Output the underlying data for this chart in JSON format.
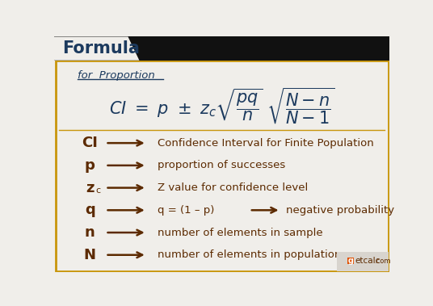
{
  "bg_color": "#f0eeea",
  "header_bg": "#111111",
  "header_text": "Formula",
  "title_color": "#1c3a5e",
  "border_color": "#c8960c",
  "formula_color": "#1c3a5e",
  "desc_color": "#5c2a00",
  "for_proportion_text": "for  Proportion",
  "arrow_color": "#5c2a00",
  "rows": [
    {
      "symbol": "CI",
      "desc": "Confidence Interval for Finite Population",
      "subscript": ""
    },
    {
      "symbol": "p",
      "desc": "proportion of successes",
      "subscript": ""
    },
    {
      "symbol": "z",
      "desc": "Z value for confidence level",
      "subscript": "c"
    },
    {
      "symbol": "q",
      "desc": "q = (1 – p)",
      "desc2": "negative probability",
      "subscript": ""
    },
    {
      "symbol": "n",
      "desc": "number of elements in sample",
      "subscript": ""
    },
    {
      "symbol": "N",
      "desc": "number of elements in population",
      "subscript": ""
    }
  ]
}
